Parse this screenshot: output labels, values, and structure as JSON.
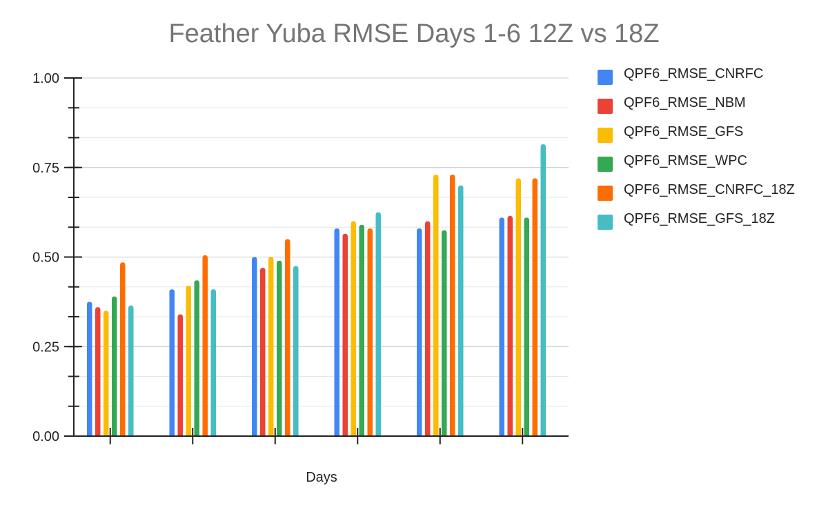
{
  "chart_data": {
    "type": "bar",
    "title": "Feather Yuba RMSE Days 1-6 12Z vs 18Z",
    "xlabel": "Days",
    "ylabel": "",
    "ylim": [
      0,
      1
    ],
    "yticks": [
      "0.00",
      "0.25",
      "0.50",
      "0.75",
      "1.00"
    ],
    "categories": [
      "",
      "",
      "",
      "",
      "",
      ""
    ],
    "grid": true,
    "legend_position": "right",
    "series": [
      {
        "name": "QPF6_RMSE_CNRFC",
        "color": "#4285f4",
        "values": [
          0.375,
          0.41,
          0.5,
          0.58,
          0.58,
          0.61
        ]
      },
      {
        "name": "QPF6_RMSE_NBM",
        "color": "#ea4335",
        "values": [
          0.36,
          0.34,
          0.47,
          0.565,
          0.6,
          0.615
        ]
      },
      {
        "name": "QPF6_RMSE_GFS",
        "color": "#fbbc04",
        "values": [
          0.35,
          0.42,
          0.5,
          0.6,
          0.73,
          0.72
        ]
      },
      {
        "name": "QPF6_RMSE_WPC",
        "color": "#34a853",
        "values": [
          0.39,
          0.435,
          0.49,
          0.59,
          0.575,
          0.61
        ]
      },
      {
        "name": "QPF6_RMSE_CNRFC_18Z",
        "color": "#ff6d01",
        "values": [
          0.485,
          0.505,
          0.55,
          0.58,
          0.73,
          0.72
        ]
      },
      {
        "name": "QPF6_RMSE_GFS_18Z",
        "color": "#46bdc6",
        "values": [
          0.365,
          0.41,
          0.475,
          0.625,
          0.7,
          0.815
        ]
      }
    ]
  }
}
